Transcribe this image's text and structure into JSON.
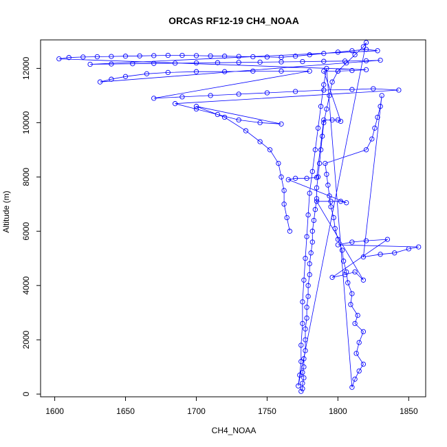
{
  "chart_data": {
    "type": "scatter",
    "title": "ORCAS RF12-19 CH4_NOAA",
    "xlabel": "CH4_NOAA",
    "ylabel": "Altitude (m)",
    "xlim": [
      1590,
      1862
    ],
    "ylim": [
      -100,
      13050
    ],
    "x_ticks": [
      1600,
      1650,
      1700,
      1750,
      1800,
      1850
    ],
    "y_ticks": [
      0,
      2000,
      4000,
      6000,
      8000,
      10000,
      12000
    ],
    "x_tick_labels": [
      "1600",
      "1650",
      "1700",
      "1750",
      "1800",
      "1850"
    ],
    "y_tick_labels": [
      "0",
      "2000",
      "4000",
      "6000",
      "8000",
      "10000",
      "12000"
    ],
    "grid": false,
    "legend": "none",
    "marker": "open-circle",
    "line_style": "overplotted-path",
    "color": "#0000ff",
    "series": [
      {
        "values": [
          [
            1774,
            100
          ],
          [
            1775,
            200
          ],
          [
            1775,
            400
          ],
          [
            1776,
            600
          ],
          [
            1775,
            800
          ],
          [
            1776,
            1000
          ],
          [
            1776,
            1300
          ],
          [
            1777,
            1600
          ],
          [
            1777,
            2000
          ],
          [
            1777,
            2400
          ],
          [
            1778,
            2800
          ],
          [
            1778,
            3200
          ],
          [
            1779,
            3600
          ],
          [
            1779,
            4000
          ],
          [
            1780,
            4400
          ],
          [
            1780,
            4800
          ],
          [
            1781,
            5200
          ],
          [
            1782,
            5600
          ],
          [
            1782,
            6000
          ],
          [
            1783,
            6400
          ],
          [
            1784,
            6800
          ],
          [
            1785,
            7200
          ],
          [
            1785,
            7600
          ],
          [
            1786,
            8000
          ],
          [
            1787,
            8500
          ],
          [
            1788,
            9000
          ],
          [
            1789,
            9500
          ],
          [
            1790,
            10000
          ],
          [
            1792,
            10500
          ],
          [
            1794,
            11000
          ],
          [
            1796,
            11500
          ],
          [
            1800,
            11900
          ],
          [
            1806,
            12200
          ],
          [
            1812,
            12500
          ],
          [
            1818,
            12800
          ],
          [
            1820,
            12950
          ],
          [
            1772,
            300
          ],
          [
            1773,
            700
          ],
          [
            1774,
            1200
          ],
          [
            1774,
            1800
          ],
          [
            1775,
            2600
          ],
          [
            1775,
            3400
          ],
          [
            1776,
            4200
          ],
          [
            1777,
            5000
          ],
          [
            1778,
            5800
          ],
          [
            1779,
            6600
          ],
          [
            1780,
            7400
          ],
          [
            1782,
            8200
          ],
          [
            1784,
            9000
          ],
          [
            1786,
            9800
          ],
          [
            1788,
            10600
          ],
          [
            1790,
            11400
          ],
          [
            1792,
            12000
          ],
          [
            1810,
            250
          ],
          [
            1812,
            550
          ],
          [
            1815,
            850
          ],
          [
            1818,
            1100
          ],
          [
            1813,
            1500
          ],
          [
            1815,
            1900
          ],
          [
            1818,
            2300
          ],
          [
            1812,
            2600
          ],
          [
            1814,
            2900
          ],
          [
            1809,
            3300
          ],
          [
            1810,
            3700
          ],
          [
            1807,
            4100
          ],
          [
            1806,
            4500
          ],
          [
            1804,
            4900
          ],
          [
            1803,
            5300
          ],
          [
            1800,
            5700
          ],
          [
            1798,
            6100
          ],
          [
            1797,
            6500
          ],
          [
            1795,
            6900
          ],
          [
            1794,
            7300
          ],
          [
            1793,
            7700
          ],
          [
            1792,
            8100
          ],
          [
            1791,
            8500
          ],
          [
            1820,
            9000
          ],
          [
            1824,
            9400
          ],
          [
            1826,
            9800
          ],
          [
            1828,
            10200
          ],
          [
            1830,
            10600
          ],
          [
            1831,
            11000
          ],
          [
            1818,
            5050
          ],
          [
            1830,
            5150
          ],
          [
            1840,
            5200
          ],
          [
            1850,
            5350
          ],
          [
            1857,
            5420
          ],
          [
            1800,
            5500
          ],
          [
            1810,
            5600
          ],
          [
            1820,
            5650
          ],
          [
            1835,
            5700
          ],
          [
            1796,
            4300
          ],
          [
            1805,
            4400
          ],
          [
            1812,
            4500
          ],
          [
            1818,
            4200
          ],
          [
            1785,
            7100
          ],
          [
            1795,
            7100
          ],
          [
            1802,
            7100
          ],
          [
            1806,
            7050
          ],
          [
            1765,
            7900
          ],
          [
            1770,
            7950
          ],
          [
            1778,
            7950
          ],
          [
            1785,
            7980
          ],
          [
            1790,
            10100
          ],
          [
            1796,
            10100
          ],
          [
            1800,
            10100
          ],
          [
            1802,
            10050
          ],
          [
            1790,
            11900
          ],
          [
            1800,
            11900
          ],
          [
            1810,
            11920
          ],
          [
            1820,
            11950
          ],
          [
            1603,
            12350
          ],
          [
            1610,
            12400
          ],
          [
            1620,
            12420
          ],
          [
            1630,
            12430
          ],
          [
            1640,
            12440
          ],
          [
            1650,
            12450
          ],
          [
            1660,
            12460
          ],
          [
            1670,
            12470
          ],
          [
            1680,
            12480
          ],
          [
            1690,
            12480
          ],
          [
            1700,
            12470
          ],
          [
            1710,
            12460
          ],
          [
            1720,
            12450
          ],
          [
            1730,
            12440
          ],
          [
            1740,
            12430
          ],
          [
            1750,
            12420
          ],
          [
            1760,
            12410
          ],
          [
            1770,
            12450
          ],
          [
            1780,
            12500
          ],
          [
            1790,
            12550
          ],
          [
            1800,
            12600
          ],
          [
            1810,
            12650
          ],
          [
            1820,
            12700
          ],
          [
            1828,
            12650
          ],
          [
            1625,
            12150
          ],
          [
            1640,
            12160
          ],
          [
            1655,
            12170
          ],
          [
            1670,
            12180
          ],
          [
            1685,
            12190
          ],
          [
            1700,
            12200
          ],
          [
            1715,
            12210
          ],
          [
            1730,
            12220
          ],
          [
            1745,
            12230
          ],
          [
            1760,
            12240
          ],
          [
            1775,
            12250
          ],
          [
            1790,
            12260
          ],
          [
            1805,
            12270
          ],
          [
            1820,
            12280
          ],
          [
            1830,
            12300
          ],
          [
            1632,
            11500
          ],
          [
            1640,
            11600
          ],
          [
            1650,
            11700
          ],
          [
            1665,
            11800
          ],
          [
            1680,
            11850
          ],
          [
            1700,
            11880
          ],
          [
            1720,
            11880
          ],
          [
            1740,
            11900
          ],
          [
            1760,
            11900
          ],
          [
            1780,
            11900
          ],
          [
            1670,
            10900
          ],
          [
            1690,
            10950
          ],
          [
            1710,
            11000
          ],
          [
            1730,
            11050
          ],
          [
            1750,
            11100
          ],
          [
            1770,
            11150
          ],
          [
            1790,
            11200
          ],
          [
            1810,
            11220
          ],
          [
            1825,
            11250
          ],
          [
            1843,
            11200
          ],
          [
            1685,
            10700
          ],
          [
            1700,
            10500
          ],
          [
            1715,
            10300
          ],
          [
            1730,
            10100
          ],
          [
            1745,
            10000
          ],
          [
            1760,
            9950
          ],
          [
            1700,
            10600
          ],
          [
            1720,
            10200
          ],
          [
            1735,
            9700
          ],
          [
            1745,
            9300
          ],
          [
            1752,
            9000
          ],
          [
            1758,
            8500
          ],
          [
            1760,
            8000
          ],
          [
            1762,
            7500
          ],
          [
            1762,
            7000
          ],
          [
            1764,
            6500
          ],
          [
            1766,
            6000
          ]
        ]
      }
    ]
  }
}
